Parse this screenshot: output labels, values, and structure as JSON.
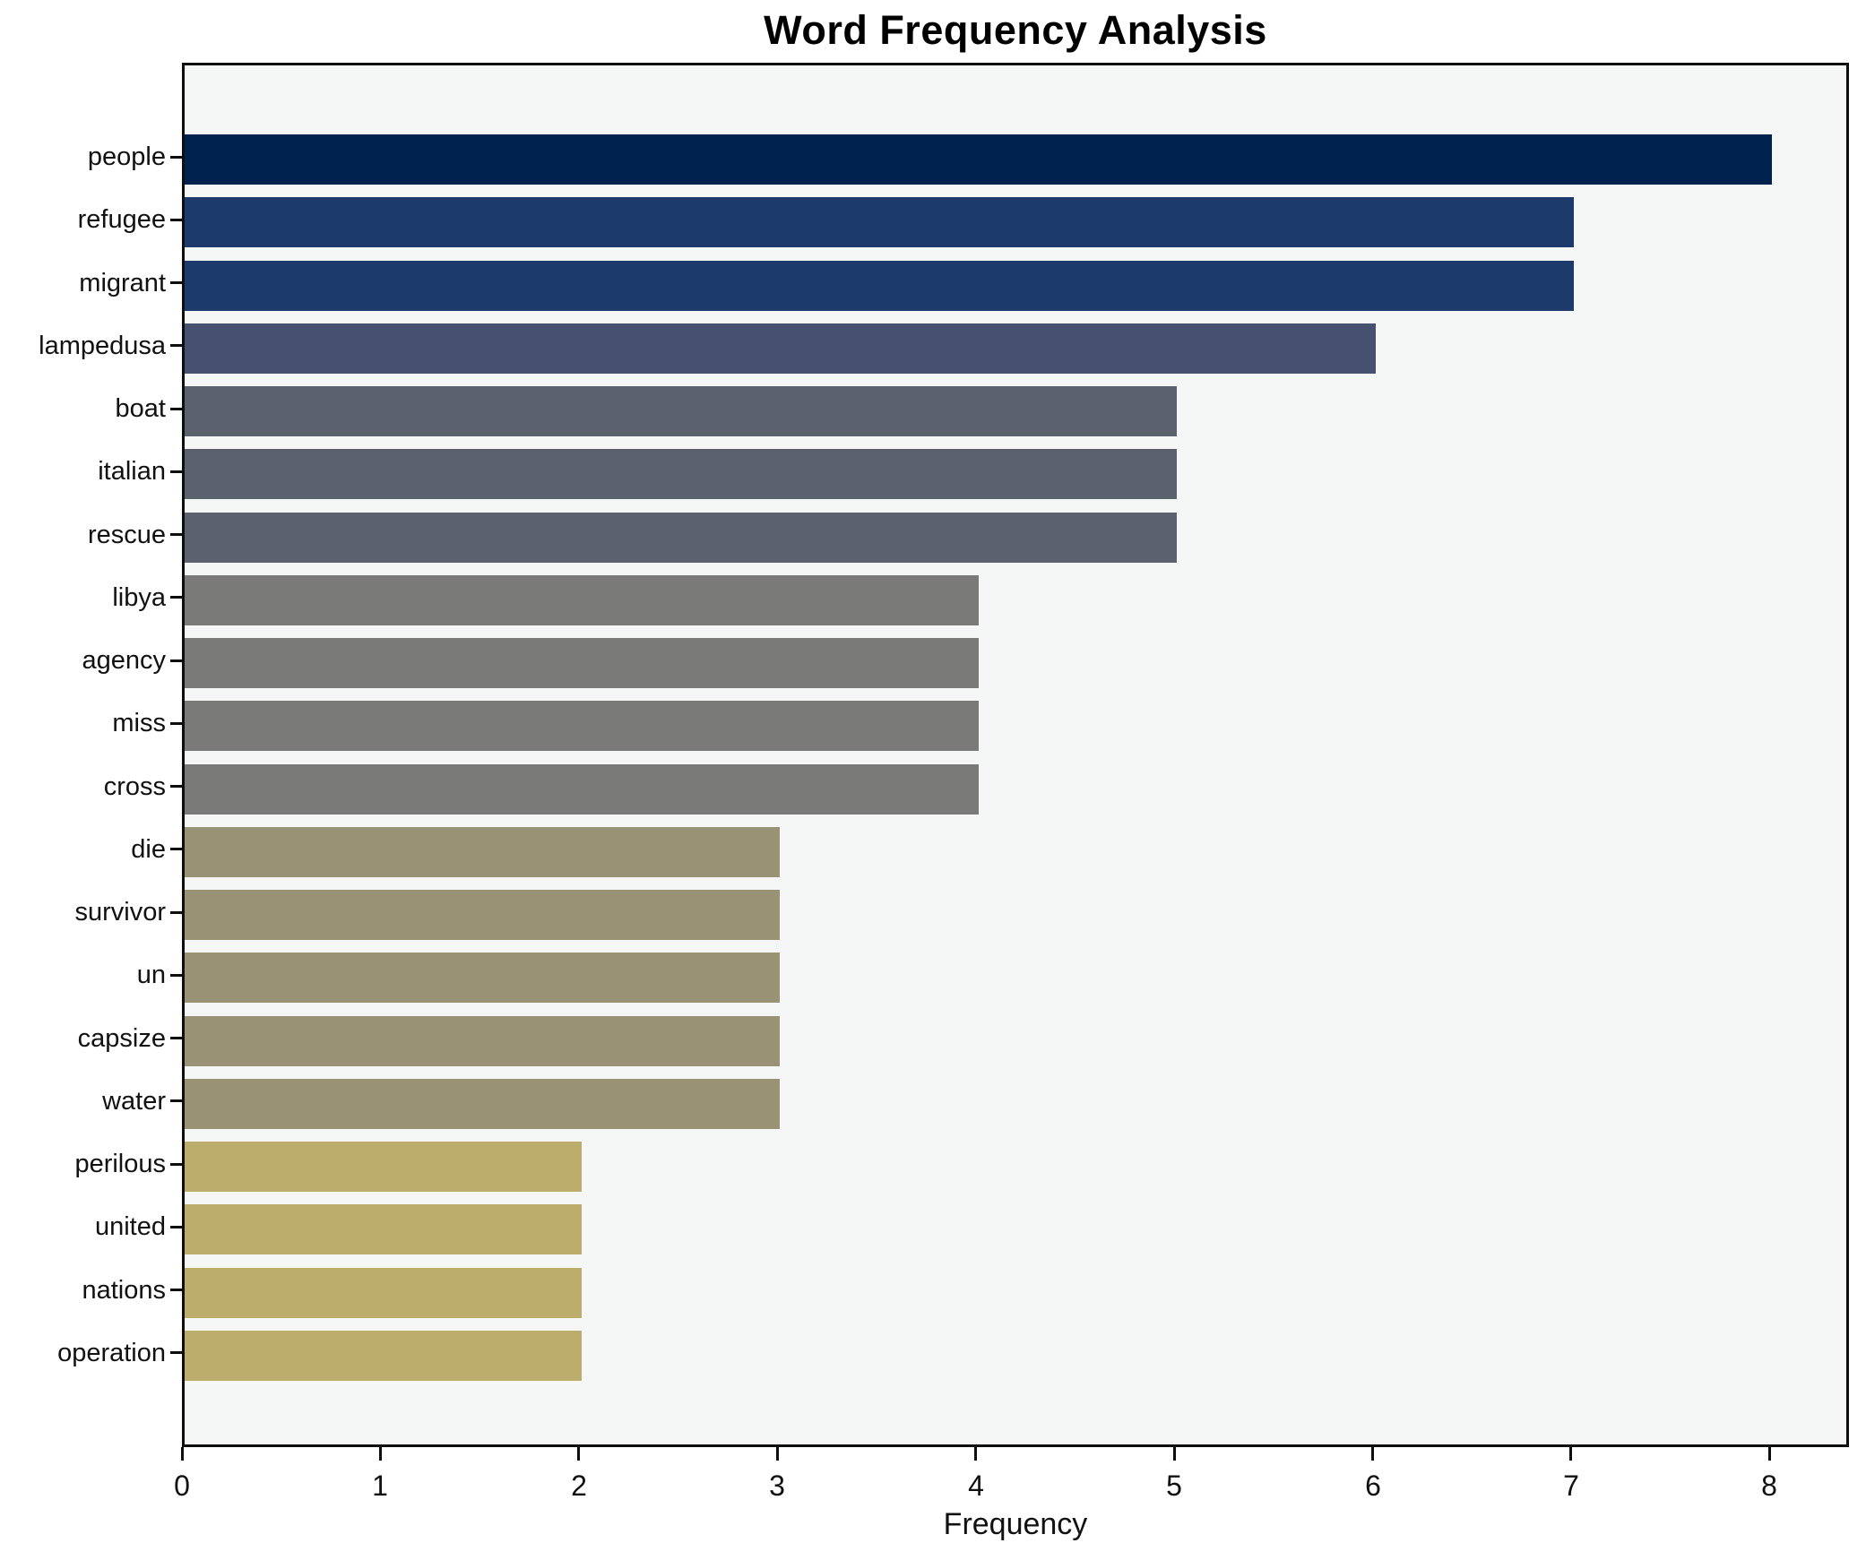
{
  "title": "Word Frequency Analysis",
  "chart_data": {
    "type": "bar",
    "orientation": "horizontal",
    "title": "Word Frequency Analysis",
    "xlabel": "Frequency",
    "ylabel": "",
    "categories": [
      "people",
      "refugee",
      "migrant",
      "lampedusa",
      "boat",
      "italian",
      "rescue",
      "libya",
      "agency",
      "miss",
      "cross",
      "die",
      "survivor",
      "un",
      "capsize",
      "water",
      "perilous",
      "united",
      "nations",
      "operation"
    ],
    "values": [
      8,
      7,
      7,
      6,
      5,
      5,
      5,
      4,
      4,
      4,
      4,
      3,
      3,
      3,
      3,
      3,
      2,
      2,
      2,
      2
    ],
    "bar_colors": [
      "#00224e",
      "#1d3a6c",
      "#1d3a6c",
      "#45516e",
      "#5c616e",
      "#5c616e",
      "#5c616e",
      "#7a7a78",
      "#7a7a78",
      "#7a7a78",
      "#7a7a78",
      "#999274",
      "#999274",
      "#999274",
      "#999274",
      "#999274",
      "#bcad6c",
      "#bcad6c",
      "#bcad6c",
      "#bcad6c"
    ],
    "colormap": "cividis",
    "xlim": [
      0,
      8.4
    ],
    "x_ticks": [
      "0",
      "1",
      "2",
      "3",
      "4",
      "5",
      "6",
      "7",
      "8"
    ],
    "grid": false,
    "legend": false,
    "plot_background": "#f5f6f6",
    "figure_background": "#ffffff",
    "spine_color": "#0e0e0e"
  }
}
